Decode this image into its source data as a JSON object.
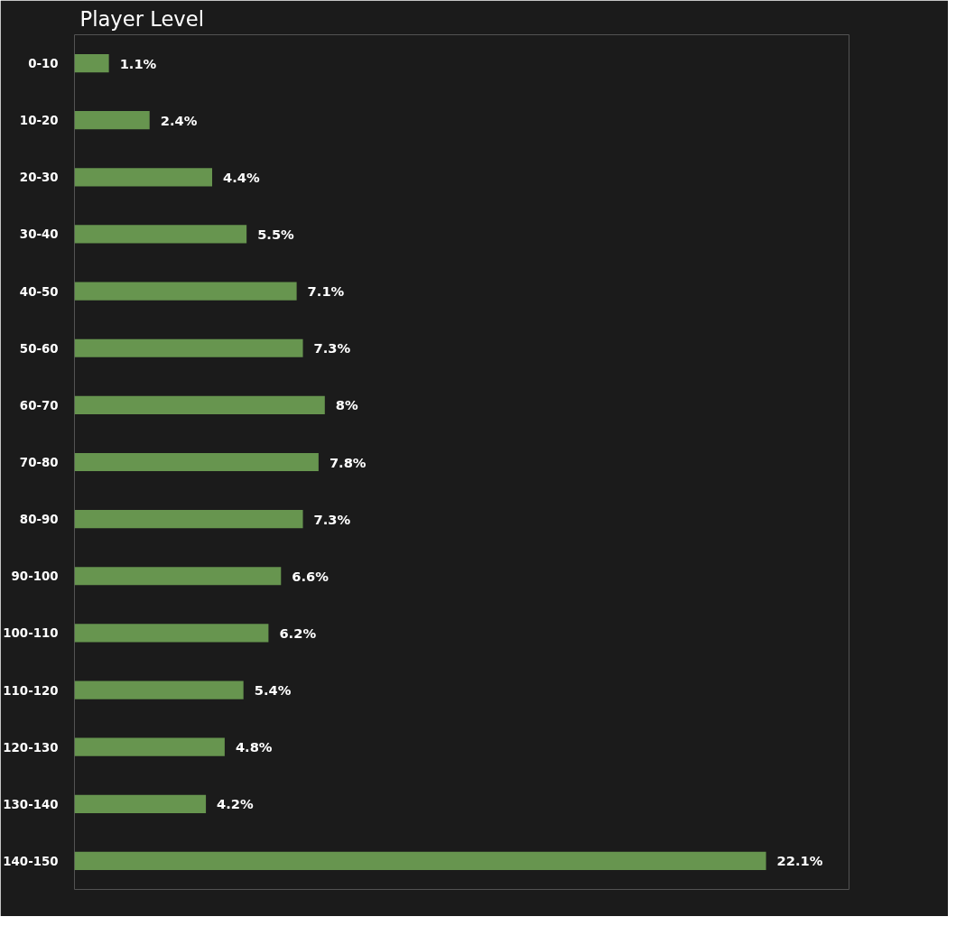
{
  "chart_data": {
    "type": "bar",
    "orientation": "horizontal",
    "title": "Player Level",
    "color": "#67954f",
    "categories": [
      "0-10",
      "10-20",
      "20-30",
      "30-40",
      "40-50",
      "50-60",
      "60-70",
      "70-80",
      "80-90",
      "90-100",
      "100-110",
      "110-120",
      "120-130",
      "130-140",
      "140-150"
    ],
    "values": [
      1.1,
      2.4,
      4.4,
      5.5,
      7.1,
      7.3,
      8,
      7.8,
      7.3,
      6.6,
      6.2,
      5.4,
      4.8,
      4.2,
      22.1
    ],
    "value_labels": [
      "1.1%",
      "2.4%",
      "4.4%",
      "5.5%",
      "7.1%",
      "7.3%",
      "8%",
      "7.8%",
      "7.3%",
      "6.6%",
      "6.2%",
      "5.4%",
      "4.8%",
      "4.2%",
      "22.1%"
    ]
  }
}
